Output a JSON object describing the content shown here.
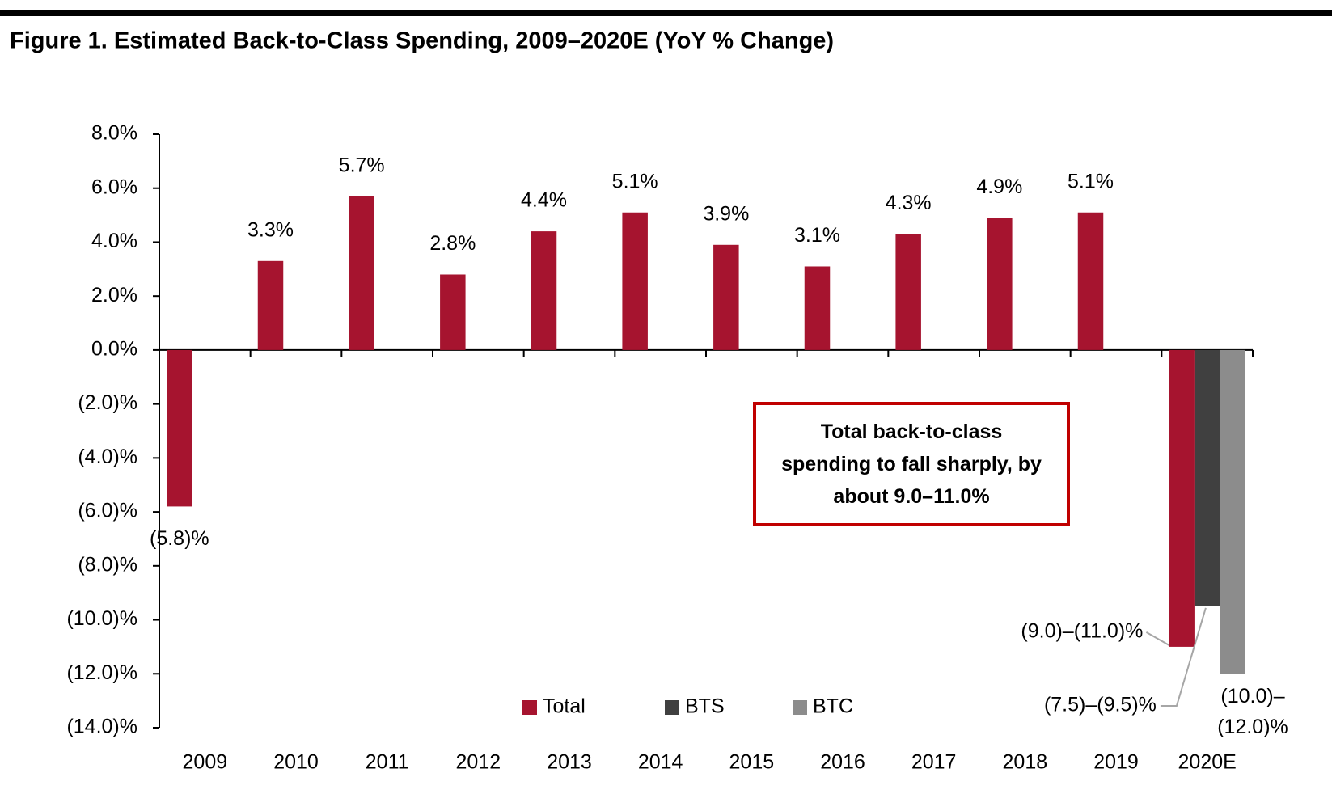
{
  "chart_data": {
    "type": "bar",
    "title": "Figure 1. Estimated Back-to-Class Spending, 2009–2020E (YoY % Change)",
    "categories": [
      "2009",
      "2010",
      "2011",
      "2012",
      "2013",
      "2014",
      "2015",
      "2016",
      "2017",
      "2018",
      "2019",
      "2020E"
    ],
    "series": [
      {
        "name": "Total",
        "color": "#a6142f",
        "values": [
          -5.8,
          3.3,
          5.7,
          2.8,
          4.4,
          5.1,
          3.9,
          3.1,
          4.3,
          4.9,
          5.1,
          -11.0
        ],
        "value_labels": [
          "(5.8)%",
          "3.3%",
          "5.7%",
          "2.8%",
          "4.4%",
          "5.1%",
          "3.9%",
          "3.1%",
          "4.3%",
          "4.9%",
          "5.1%",
          "(9.0)–(11.0)%"
        ]
      },
      {
        "name": "BTS",
        "color": "#404040",
        "values": [
          null,
          null,
          null,
          null,
          null,
          null,
          null,
          null,
          null,
          null,
          null,
          -9.5
        ],
        "value_labels": [
          null,
          null,
          null,
          null,
          null,
          null,
          null,
          null,
          null,
          null,
          null,
          "(7.5)–(9.5)%"
        ]
      },
      {
        "name": "BTC",
        "color": "#8c8c8c",
        "values": [
          null,
          null,
          null,
          null,
          null,
          null,
          null,
          null,
          null,
          null,
          null,
          -12.0
        ],
        "value_labels": [
          null,
          null,
          null,
          null,
          null,
          null,
          null,
          null,
          null,
          null,
          null,
          "(10.0)–(12.0)%"
        ]
      }
    ],
    "ylim": [
      -14,
      8
    ],
    "yticks": [
      {
        "value": 8,
        "label": "8.0%"
      },
      {
        "value": 6,
        "label": "6.0%"
      },
      {
        "value": 4,
        "label": "4.0%"
      },
      {
        "value": 2,
        "label": "2.0%"
      },
      {
        "value": 0,
        "label": "0.0%"
      },
      {
        "value": -2,
        "label": "(2.0)%"
      },
      {
        "value": -4,
        "label": "(4.0)%"
      },
      {
        "value": -6,
        "label": "(6.0)%"
      },
      {
        "value": -8,
        "label": "(8.0)%"
      },
      {
        "value": -10,
        "label": "(10.0)%"
      },
      {
        "value": -12,
        "label": "(12.0)%"
      },
      {
        "value": -14,
        "label": "(14.0)%"
      }
    ],
    "annotation": "Total back-to-class spending to fall sharply, by about 9.0–11.0%",
    "legend": "bottom"
  }
}
